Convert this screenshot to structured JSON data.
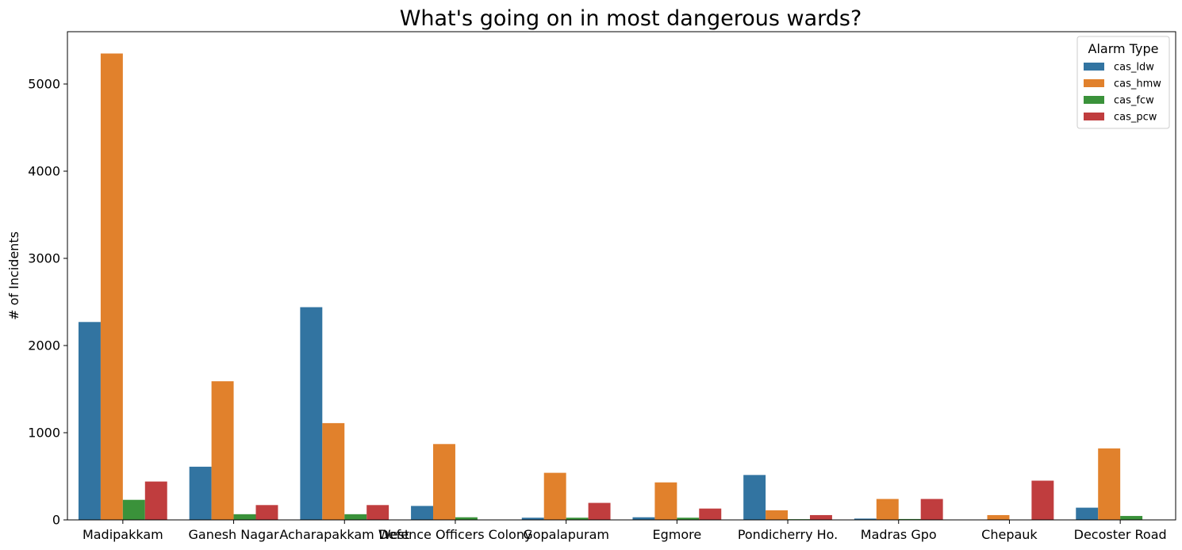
{
  "chart_data": {
    "type": "bar",
    "title": "What's going on in most dangerous wards?",
    "xlabel": "",
    "ylabel": "# of Incidents",
    "ylim": [
      0,
      5600
    ],
    "yticks": [
      0,
      1000,
      2000,
      3000,
      4000,
      5000
    ],
    "grid": false,
    "legend": {
      "title": "Alarm Type",
      "placement": "top-right"
    },
    "categories": [
      "Madipakkam",
      "Ganesh Nagar",
      "Acharapakkam West",
      "Defence Officers Colony",
      "Gopalapuram",
      "Egmore",
      "Pondicherry Ho.",
      "Madras Gpo",
      "Chepauk",
      "Decoster Road"
    ],
    "series": [
      {
        "name": "cas_ldw",
        "color": "#3274a1",
        "values": [
          2270,
          610,
          2440,
          160,
          25,
          30,
          515,
          15,
          0,
          140
        ]
      },
      {
        "name": "cas_hmw",
        "color": "#e1812c",
        "values": [
          5350,
          1590,
          1110,
          870,
          540,
          430,
          110,
          240,
          55,
          820
        ]
      },
      {
        "name": "cas_fcw",
        "color": "#3a923a",
        "values": [
          230,
          65,
          65,
          30,
          25,
          25,
          8,
          10,
          0,
          45
        ]
      },
      {
        "name": "cas_pcw",
        "color": "#c03d3e",
        "values": [
          440,
          170,
          170,
          0,
          195,
          130,
          55,
          240,
          450,
          0
        ]
      }
    ]
  }
}
